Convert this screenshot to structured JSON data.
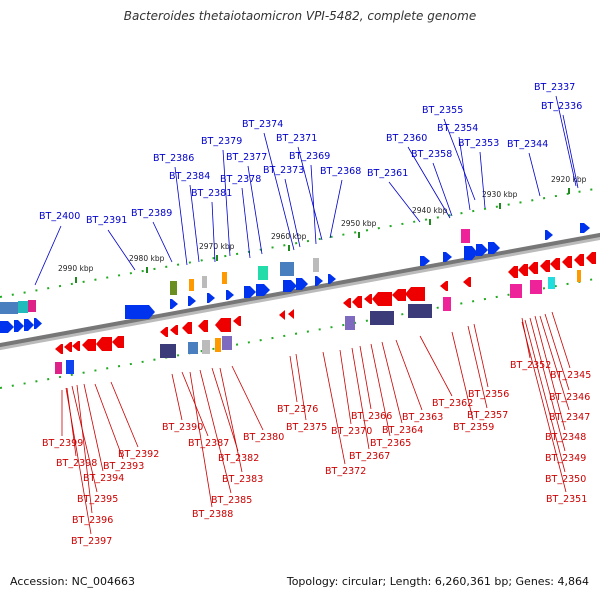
{
  "title": "Bacteroides thetaiotaomicron VPI-5482, complete genome",
  "accession_text": "Accession: NC_004663",
  "summary_text": "Topology: circular; Length: 6,260,361 bp; Genes: 4,864",
  "colors": {
    "forward_label": "#0000cc",
    "reverse_label": "#cc0000",
    "axis": "#888888",
    "tick_mark": "#228822"
  },
  "scale_ticks": [
    {
      "label": "2990 kbp"
    },
    {
      "label": "2980 kbp"
    },
    {
      "label": "2970 kbp"
    },
    {
      "label": "2960 kbp"
    },
    {
      "label": "2950 kbp"
    },
    {
      "label": "2940 kbp"
    },
    {
      "label": "2930 kbp"
    },
    {
      "label": "2920 kbp"
    }
  ],
  "forward_genes": [
    {
      "label": "BT_2400"
    },
    {
      "label": "BT_2391"
    },
    {
      "label": "BT_2389"
    },
    {
      "label": "BT_2386"
    },
    {
      "label": "BT_2384"
    },
    {
      "label": "BT_2381"
    },
    {
      "label": "BT_2379"
    },
    {
      "label": "BT_2378"
    },
    {
      "label": "BT_2377"
    },
    {
      "label": "BT_2374"
    },
    {
      "label": "BT_2373"
    },
    {
      "label": "BT_2371"
    },
    {
      "label": "BT_2369"
    },
    {
      "label": "BT_2368"
    },
    {
      "label": "BT_2361"
    },
    {
      "label": "BT_2360"
    },
    {
      "label": "BT_2358"
    },
    {
      "label": "BT_2355"
    },
    {
      "label": "BT_2354"
    },
    {
      "label": "BT_2353"
    },
    {
      "label": "BT_2344"
    },
    {
      "label": "BT_2337"
    },
    {
      "label": "BT_2336"
    }
  ],
  "reverse_genes": [
    {
      "label": "BT_2399"
    },
    {
      "label": "BT_2398"
    },
    {
      "label": "BT_2395"
    },
    {
      "label": "BT_2396"
    },
    {
      "label": "BT_2397"
    },
    {
      "label": "BT_2394"
    },
    {
      "label": "BT_2393"
    },
    {
      "label": "BT_2392"
    },
    {
      "label": "BT_2390"
    },
    {
      "label": "BT_2387"
    },
    {
      "label": "BT_2388"
    },
    {
      "label": "BT_2385"
    },
    {
      "label": "BT_2382"
    },
    {
      "label": "BT_2383"
    },
    {
      "label": "BT_2380"
    },
    {
      "label": "BT_2376"
    },
    {
      "label": "BT_2375"
    },
    {
      "label": "BT_2372"
    },
    {
      "label": "BT_2370"
    },
    {
      "label": "BT_2367"
    },
    {
      "label": "BT_2366"
    },
    {
      "label": "BT_2365"
    },
    {
      "label": "BT_2364"
    },
    {
      "label": "BT_2363"
    },
    {
      "label": "BT_2362"
    },
    {
      "label": "BT_2359"
    },
    {
      "label": "BT_2357"
    },
    {
      "label": "BT_2356"
    },
    {
      "label": "BT_2352"
    },
    {
      "label": "BT_2345"
    },
    {
      "label": "BT_2346"
    },
    {
      "label": "BT_2347"
    },
    {
      "label": "BT_2348"
    },
    {
      "label": "BT_2349"
    },
    {
      "label": "BT_2350"
    },
    {
      "label": "BT_2351"
    }
  ]
}
